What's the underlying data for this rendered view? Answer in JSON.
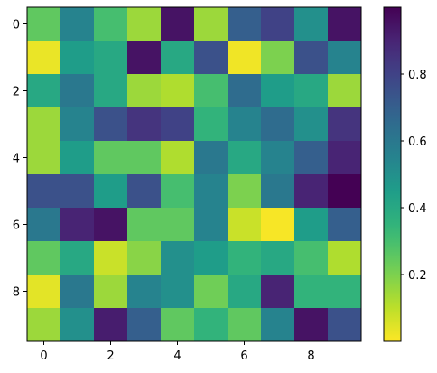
{
  "chart_data": {
    "type": "heatmap",
    "colormap": "viridis_r",
    "rows": 10,
    "cols": 10,
    "values": [
      [
        0.25,
        0.55,
        0.3,
        0.15,
        0.95,
        0.15,
        0.7,
        0.8,
        0.5,
        0.95
      ],
      [
        0.03,
        0.45,
        0.4,
        0.95,
        0.4,
        0.75,
        0.02,
        0.2,
        0.75,
        0.55
      ],
      [
        0.4,
        0.6,
        0.4,
        0.15,
        0.12,
        0.3,
        0.65,
        0.45,
        0.4,
        0.15
      ],
      [
        0.15,
        0.55,
        0.75,
        0.85,
        0.8,
        0.35,
        0.55,
        0.65,
        0.5,
        0.85
      ],
      [
        0.15,
        0.45,
        0.25,
        0.25,
        0.12,
        0.6,
        0.4,
        0.55,
        0.7,
        0.9
      ],
      [
        0.75,
        0.75,
        0.45,
        0.75,
        0.3,
        0.55,
        0.2,
        0.6,
        0.9,
        1.0
      ],
      [
        0.6,
        0.9,
        0.95,
        0.25,
        0.25,
        0.55,
        0.08,
        0.01,
        0.45,
        0.7
      ],
      [
        0.25,
        0.4,
        0.08,
        0.18,
        0.5,
        0.45,
        0.35,
        0.4,
        0.3,
        0.12
      ],
      [
        0.04,
        0.6,
        0.15,
        0.55,
        0.5,
        0.22,
        0.4,
        0.9,
        0.35,
        0.35
      ],
      [
        0.15,
        0.5,
        0.92,
        0.7,
        0.25,
        0.35,
        0.25,
        0.55,
        0.95,
        0.75
      ]
    ],
    "x_ticks": [
      "0",
      "2",
      "4",
      "6",
      "8"
    ],
    "y_ticks": [
      "0",
      "2",
      "4",
      "6",
      "8"
    ],
    "colorbar": {
      "range": [
        0.0,
        1.0
      ],
      "ticks": [
        "0.2",
        "0.4",
        "0.6",
        "0.8"
      ]
    },
    "title": "",
    "xlabel": "",
    "ylabel": ""
  }
}
